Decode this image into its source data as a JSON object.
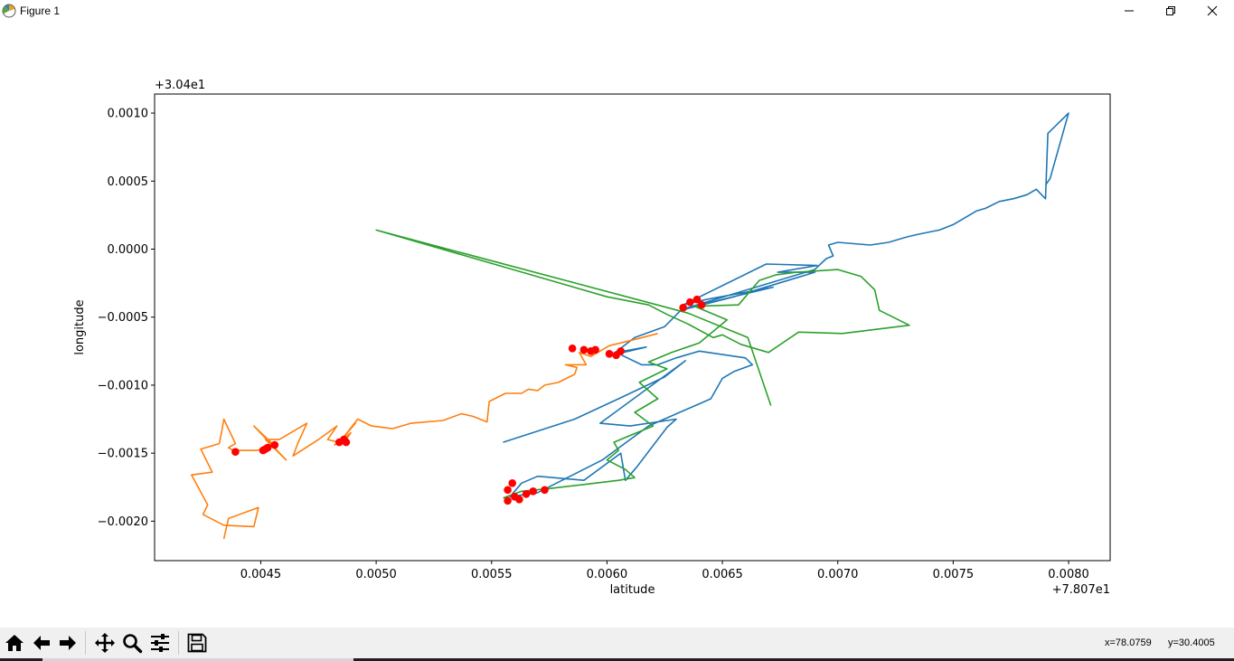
{
  "window": {
    "title": "Figure 1",
    "icons": {
      "app": "matplotlib-icon",
      "minimize": "minimize-icon",
      "restore": "restore-icon",
      "close": "close-icon"
    }
  },
  "toolbar": {
    "buttons": [
      {
        "icon": "home-icon"
      },
      {
        "icon": "back-icon"
      },
      {
        "icon": "forward-icon"
      },
      {
        "icon": "pan-icon"
      },
      {
        "icon": "zoom-icon"
      },
      {
        "icon": "configure-subplots-icon"
      },
      {
        "icon": "save-icon"
      }
    ],
    "coords_x": "x=78.0759",
    "coords_y": "y=30.4005"
  },
  "chart_data": {
    "type": "line",
    "xlabel": "latitude",
    "ylabel": "longitude",
    "x_offset_text": "+7.807e1",
    "y_offset_text": "+3.04e1",
    "xlim": [
      0.00404,
      0.00818
    ],
    "ylim": [
      -0.00229,
      0.00114
    ],
    "xticks": [
      0.0045,
      0.005,
      0.0055,
      0.006,
      0.0065,
      0.007,
      0.0075,
      0.008
    ],
    "xtick_labels": [
      "0.0045",
      "0.0050",
      "0.0055",
      "0.0060",
      "0.0065",
      "0.0070",
      "0.0075",
      "0.0080"
    ],
    "yticks": [
      0.001,
      0.0005,
      0.0,
      -0.0005,
      -0.001,
      -0.0015,
      -0.002
    ],
    "ytick_labels": [
      "0.0010",
      "0.0005",
      "0.0000",
      "−0.0005",
      "−0.0010",
      "−0.0015",
      "−0.0020"
    ],
    "grid": false,
    "colors": {
      "series1": "#1f77b4",
      "series2": "#ff7f0e",
      "series3": "#2ca02c",
      "markers": "#ff0000"
    },
    "series": [
      {
        "color": "#1f77b4",
        "points": [
          [
            0.00555,
            -0.00142
          ],
          [
            0.00586,
            -0.00125
          ],
          [
            0.00605,
            -0.0011
          ],
          [
            0.00625,
            -0.00094
          ],
          [
            0.00634,
            -0.00082
          ],
          [
            0.00597,
            -0.00128
          ],
          [
            0.0061,
            -0.0013
          ],
          [
            0.0063,
            -0.00125
          ],
          [
            0.00626,
            -0.00131
          ],
          [
            0.00613,
            -0.0016
          ],
          [
            0.00608,
            -0.0017
          ],
          [
            0.00606,
            -0.0015
          ],
          [
            0.0059,
            -0.0017
          ],
          [
            0.0057,
            -0.00167
          ],
          [
            0.00563,
            -0.00172
          ],
          [
            0.00558,
            -0.00182
          ],
          [
            0.0057,
            -0.00179
          ],
          [
            0.00598,
            -0.00155
          ],
          [
            0.00618,
            -0.0013
          ],
          [
            0.00645,
            -0.0011
          ],
          [
            0.0065,
            -0.00095
          ],
          [
            0.00655,
            -0.0009
          ],
          [
            0.00663,
            -0.00085
          ],
          [
            0.0066,
            -0.0008
          ],
          [
            0.0064,
            -0.00075
          ],
          [
            0.0063,
            -0.0008
          ],
          [
            0.00622,
            -0.00085
          ],
          [
            0.00615,
            -0.00085
          ],
          [
            0.00604,
            -0.00076
          ],
          [
            0.00617,
            -0.00072
          ],
          [
            0.00602,
            -0.00078
          ],
          [
            0.00612,
            -0.00065
          ],
          [
            0.00625,
            -0.00057
          ],
          [
            0.00632,
            -0.00045
          ],
          [
            0.00655,
            -0.00035
          ],
          [
            0.0069,
            -0.00017
          ],
          [
            0.00674,
            -0.00017
          ],
          [
            0.00691,
            -0.00012
          ],
          [
            0.00669,
            -0.00011
          ],
          [
            0.00633,
            -0.00041
          ],
          [
            0.00643,
            -0.00037
          ],
          [
            0.00672,
            -0.00028
          ],
          [
            0.00635,
            -0.00043
          ],
          [
            0.0069,
            -0.00015
          ],
          [
            0.00695,
            -7e-05
          ],
          [
            0.00698,
            -5e-05
          ],
          [
            0.00696,
            3e-05
          ],
          [
            0.007,
            5e-05
          ],
          [
            0.00714,
            3e-05
          ],
          [
            0.00722,
            5e-05
          ],
          [
            0.0073,
            9e-05
          ],
          [
            0.00735,
            0.00011
          ],
          [
            0.00744,
            0.00014
          ],
          [
            0.0075,
            0.00018
          ],
          [
            0.00754,
            0.00022
          ],
          [
            0.0076,
            0.00028
          ],
          [
            0.00764,
            0.0003
          ],
          [
            0.0077,
            0.00035
          ],
          [
            0.00776,
            0.00037
          ],
          [
            0.00782,
            0.0004
          ],
          [
            0.00786,
            0.00044
          ],
          [
            0.0079,
            0.00037
          ],
          [
            0.00791,
            0.00085
          ],
          [
            0.008,
            0.001
          ],
          [
            0.00792,
            0.00052
          ],
          [
            0.0079,
            0.00047
          ]
        ]
      },
      {
        "color": "#ff7f0e",
        "points": [
          [
            0.00434,
            -0.00213
          ],
          [
            0.00436,
            -0.00198
          ],
          [
            0.00449,
            -0.0019
          ],
          [
            0.00447,
            -0.00204
          ],
          [
            0.00434,
            -0.00203
          ],
          [
            0.00425,
            -0.00195
          ],
          [
            0.00427,
            -0.00188
          ],
          [
            0.0042,
            -0.00166
          ],
          [
            0.00429,
            -0.00164
          ],
          [
            0.00424,
            -0.00147
          ],
          [
            0.00432,
            -0.00143
          ],
          [
            0.00433,
            -0.00135
          ],
          [
            0.00434,
            -0.00125
          ],
          [
            0.00439,
            -0.00143
          ],
          [
            0.00436,
            -0.00146
          ],
          [
            0.00438,
            -0.00148
          ],
          [
            0.00448,
            -0.00148
          ],
          [
            0.00452,
            -0.00147
          ],
          [
            0.00455,
            -0.00143
          ],
          [
            0.00447,
            -0.0013
          ],
          [
            0.00461,
            -0.00155
          ],
          [
            0.00452,
            -0.0014
          ],
          [
            0.00458,
            -0.0014
          ],
          [
            0.0047,
            -0.00128
          ],
          [
            0.00466,
            -0.00143
          ],
          [
            0.00464,
            -0.00152
          ],
          [
            0.00475,
            -0.0014
          ],
          [
            0.00483,
            -0.0013
          ],
          [
            0.00479,
            -0.0014
          ],
          [
            0.00486,
            -0.00143
          ],
          [
            0.00489,
            -0.00135
          ],
          [
            0.00482,
            -0.00144
          ],
          [
            0.00487,
            -0.00136
          ],
          [
            0.00491,
            -0.00128
          ],
          [
            0.00486,
            -0.00138
          ],
          [
            0.00492,
            -0.00125
          ],
          [
            0.00498,
            -0.0013
          ],
          [
            0.00507,
            -0.00132
          ],
          [
            0.00515,
            -0.00128
          ],
          [
            0.00529,
            -0.00126
          ],
          [
            0.00537,
            -0.00121
          ],
          [
            0.00542,
            -0.00123
          ],
          [
            0.00548,
            -0.00127
          ],
          [
            0.00549,
            -0.00112
          ],
          [
            0.00556,
            -0.00106
          ],
          [
            0.00563,
            -0.00106
          ],
          [
            0.00566,
            -0.00103
          ],
          [
            0.0057,
            -0.00104
          ],
          [
            0.00573,
            -0.001
          ],
          [
            0.00579,
            -0.00098
          ],
          [
            0.00586,
            -0.00092
          ],
          [
            0.00587,
            -0.00087
          ],
          [
            0.00582,
            -0.00085
          ],
          [
            0.00591,
            -0.00085
          ],
          [
            0.00588,
            -0.00076
          ],
          [
            0.00593,
            -0.00079
          ],
          [
            0.00601,
            -0.00071
          ],
          [
            0.00613,
            -0.00066
          ],
          [
            0.00622,
            -0.00062
          ]
        ]
      },
      {
        "color": "#2ca02c",
        "points": [
          [
            0.00555,
            -0.00183
          ],
          [
            0.00563,
            -0.00178
          ],
          [
            0.00575,
            -0.00176
          ],
          [
            0.0059,
            -0.00173
          ],
          [
            0.00605,
            -0.0017
          ],
          [
            0.00612,
            -0.00168
          ],
          [
            0.00608,
            -0.00162
          ],
          [
            0.006,
            -0.00155
          ],
          [
            0.00605,
            -0.00148
          ],
          [
            0.00603,
            -0.00142
          ],
          [
            0.0061,
            -0.00137
          ],
          [
            0.0062,
            -0.0013
          ],
          [
            0.00612,
            -0.0012
          ],
          [
            0.00622,
            -0.0011
          ],
          [
            0.00614,
            -0.00098
          ],
          [
            0.00626,
            -0.00088
          ],
          [
            0.00618,
            -0.00083
          ],
          [
            0.00628,
            -0.00076
          ],
          [
            0.0064,
            -0.00069
          ],
          [
            0.00652,
            -0.00052
          ],
          [
            0.00638,
            -0.00042
          ],
          [
            0.00657,
            -0.00041
          ],
          [
            0.00666,
            -0.00023
          ],
          [
            0.00673,
            -0.00019
          ],
          [
            0.00682,
            -0.00017
          ],
          [
            0.007,
            -0.00015
          ],
          [
            0.0071,
            -0.0002
          ],
          [
            0.00716,
            -0.0003
          ],
          [
            0.00718,
            -0.00045
          ],
          [
            0.00731,
            -0.00056
          ],
          [
            0.00702,
            -0.00062
          ],
          [
            0.00683,
            -0.00061
          ],
          [
            0.0067,
            -0.00076
          ],
          [
            0.00658,
            -0.0007
          ],
          [
            0.0065,
            -0.00063
          ],
          [
            0.00646,
            -0.00065
          ],
          [
            0.00635,
            -0.00055
          ],
          [
            0.00626,
            -0.00048
          ],
          [
            0.00618,
            -0.00041
          ],
          [
            0.006,
            -0.00035
          ],
          [
            0.005,
            0.00014
          ],
          [
            0.00635,
            -0.00047
          ],
          [
            0.00661,
            -0.00065
          ],
          [
            0.00671,
            -0.00115
          ]
        ]
      }
    ],
    "marker_points": [
      [
        0.00439,
        -0.00149
      ],
      [
        0.00451,
        -0.00148
      ],
      [
        0.00453,
        -0.00146
      ],
      [
        0.00456,
        -0.00144
      ],
      [
        0.00452,
        -0.00147
      ],
      [
        0.00484,
        -0.00142
      ],
      [
        0.00486,
        -0.0014
      ],
      [
        0.00487,
        -0.00142
      ],
      [
        0.00557,
        -0.00177
      ],
      [
        0.00559,
        -0.00172
      ],
      [
        0.0056,
        -0.00182
      ],
      [
        0.00562,
        -0.00184
      ],
      [
        0.00565,
        -0.0018
      ],
      [
        0.00568,
        -0.00178
      ],
      [
        0.00573,
        -0.00177
      ],
      [
        0.00557,
        -0.00185
      ],
      [
        0.00585,
        -0.00073
      ],
      [
        0.0059,
        -0.00074
      ],
      [
        0.00593,
        -0.00075
      ],
      [
        0.00595,
        -0.00074
      ],
      [
        0.00601,
        -0.00077
      ],
      [
        0.00604,
        -0.00078
      ],
      [
        0.00606,
        -0.00075
      ],
      [
        0.00633,
        -0.00043
      ],
      [
        0.00636,
        -0.00039
      ],
      [
        0.00639,
        -0.00037
      ],
      [
        0.00641,
        -0.00041
      ]
    ]
  }
}
